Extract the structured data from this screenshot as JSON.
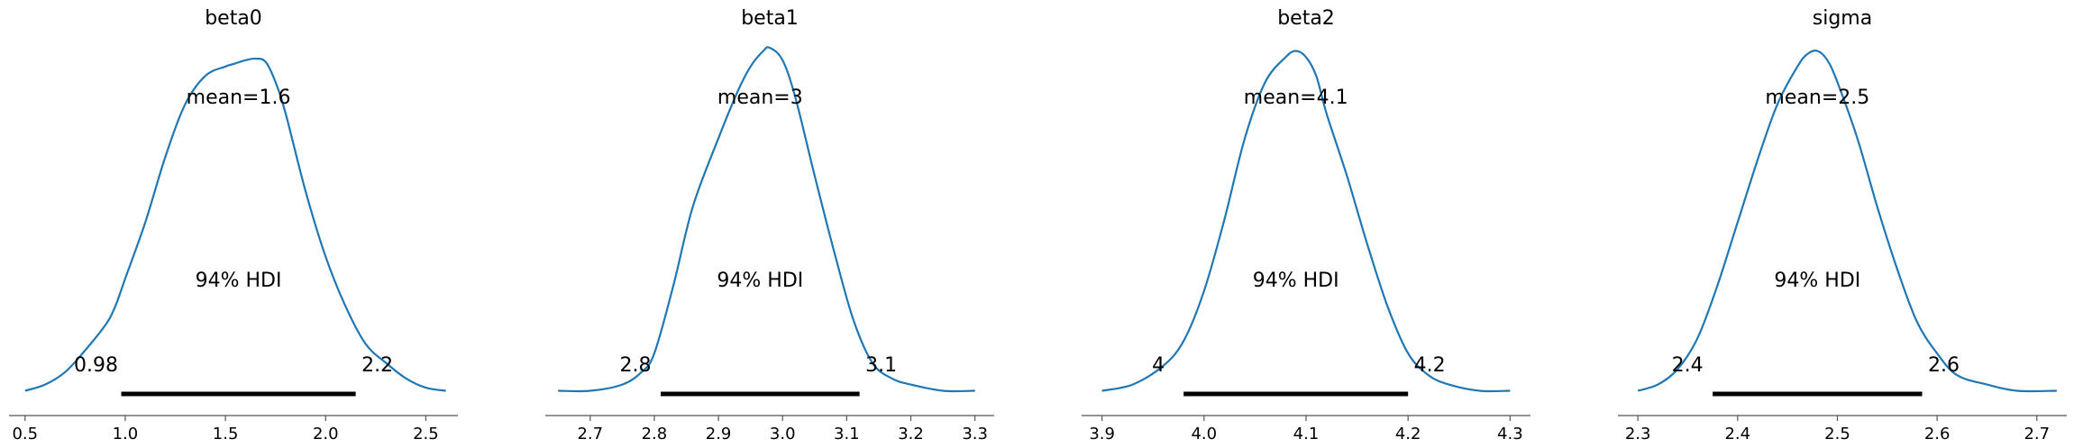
{
  "chart_data": [
    {
      "type": "line",
      "title": "beta0",
      "xlim": [
        0.42,
        2.66
      ],
      "xticks": [
        "0.5",
        "1.0",
        "1.5",
        "2.0",
        "2.5"
      ],
      "xtick_values": [
        0.5,
        1.0,
        1.5,
        2.0,
        2.5
      ],
      "density": {
        "x": [
          0.5,
          0.6,
          0.7,
          0.8,
          0.9,
          0.95,
          1.0,
          1.1,
          1.2,
          1.3,
          1.4,
          1.5,
          1.55,
          1.6,
          1.65,
          1.7,
          1.75,
          1.8,
          1.9,
          2.0,
          2.1,
          2.2,
          2.3,
          2.4,
          2.5,
          2.6
        ],
        "y": [
          0.01,
          0.03,
          0.07,
          0.14,
          0.22,
          0.28,
          0.37,
          0.55,
          0.76,
          0.93,
          1.02,
          1.05,
          1.06,
          1.07,
          1.075,
          1.065,
          1.0,
          0.9,
          0.65,
          0.44,
          0.28,
          0.16,
          0.1,
          0.05,
          0.02,
          0.01
        ]
      },
      "mean_label": "mean=1.6",
      "hdi_label": "94% HDI",
      "hdi": [
        0.98,
        2.15
      ],
      "hdi_low_label": "0.98",
      "hdi_high_label": "2.2"
    },
    {
      "type": "line",
      "title": "beta1",
      "xlim": [
        2.63,
        3.33
      ],
      "xticks": [
        "2.7",
        "2.8",
        "2.9",
        "3.0",
        "3.1",
        "3.2",
        "3.3"
      ],
      "xtick_values": [
        2.7,
        2.8,
        2.9,
        3.0,
        3.1,
        3.2,
        3.3
      ],
      "density": {
        "x": [
          2.65,
          2.7,
          2.75,
          2.78,
          2.8,
          2.83,
          2.86,
          2.9,
          2.93,
          2.95,
          2.97,
          2.98,
          3.0,
          3.02,
          3.05,
          3.08,
          3.11,
          3.14,
          3.17,
          3.2,
          3.25,
          3.3
        ],
        "y": [
          0.01,
          0.01,
          0.03,
          0.07,
          0.13,
          0.35,
          0.6,
          0.82,
          0.97,
          1.05,
          1.1,
          1.11,
          1.07,
          0.95,
          0.7,
          0.46,
          0.24,
          0.1,
          0.05,
          0.03,
          0.01,
          0.01
        ]
      },
      "mean_label": "mean=3",
      "hdi_label": "94% HDI",
      "hdi": [
        2.81,
        3.12
      ],
      "hdi_low_label": "2.8",
      "hdi_high_label": "3.1"
    },
    {
      "type": "line",
      "title": "beta2",
      "xlim": [
        3.88,
        4.32
      ],
      "xticks": [
        "3.9",
        "4.0",
        "4.1",
        "4.2",
        "4.3"
      ],
      "xtick_values": [
        3.9,
        4.0,
        4.1,
        4.2,
        4.3
      ],
      "density": {
        "x": [
          3.9,
          3.93,
          3.96,
          3.98,
          4.0,
          4.02,
          4.04,
          4.06,
          4.08,
          4.09,
          4.1,
          4.11,
          4.12,
          4.14,
          4.16,
          4.18,
          4.2,
          4.22,
          4.24,
          4.27,
          4.3
        ],
        "y": [
          0.01,
          0.03,
          0.09,
          0.17,
          0.33,
          0.56,
          0.82,
          1.0,
          1.08,
          1.1,
          1.08,
          1.02,
          0.9,
          0.7,
          0.48,
          0.28,
          0.13,
          0.06,
          0.03,
          0.01,
          0.01
        ]
      },
      "mean_label": "mean=4.1",
      "hdi_label": "94% HDI",
      "hdi": [
        3.98,
        4.2
      ],
      "hdi_low_label": "4",
      "hdi_high_label": "4.2"
    },
    {
      "type": "line",
      "title": "sigma",
      "xlim": [
        2.28,
        2.73
      ],
      "xticks": [
        "2.3",
        "2.4",
        "2.5",
        "2.6",
        "2.7"
      ],
      "xtick_values": [
        2.3,
        2.4,
        2.5,
        2.6,
        2.7
      ],
      "density": {
        "x": [
          2.3,
          2.32,
          2.34,
          2.36,
          2.38,
          2.4,
          2.42,
          2.44,
          2.46,
          2.47,
          2.48,
          2.49,
          2.5,
          2.52,
          2.54,
          2.56,
          2.58,
          2.6,
          2.62,
          2.65,
          2.68,
          2.72
        ],
        "y": [
          0.01,
          0.03,
          0.08,
          0.18,
          0.35,
          0.55,
          0.75,
          0.93,
          1.05,
          1.09,
          1.1,
          1.07,
          1.0,
          0.82,
          0.6,
          0.4,
          0.23,
          0.13,
          0.06,
          0.03,
          0.01,
          0.01
        ]
      },
      "mean_label": "mean=2.5",
      "hdi_label": "94% HDI",
      "hdi": [
        2.375,
        2.585
      ],
      "hdi_low_label": "2.4",
      "hdi_high_label": "2.6"
    }
  ],
  "colors": {
    "density_line": "#1f77b4",
    "hdi_bar": "#000000",
    "axis": "#555555"
  }
}
